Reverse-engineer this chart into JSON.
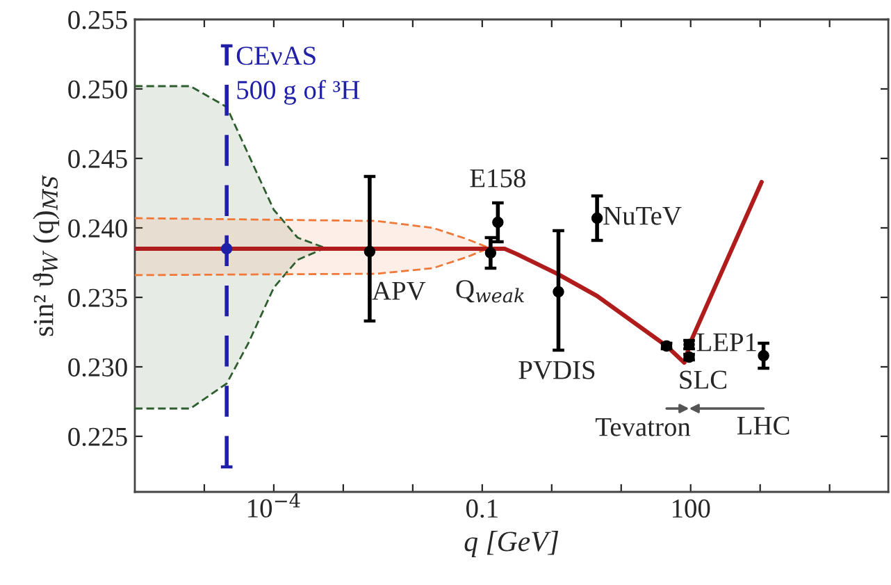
{
  "chart_data": {
    "type": "scatter",
    "xlabel": "q [GeV]",
    "ylabel": "sin² ϑ$_{W}$ (q)$_{M̅S̅}$",
    "log": "x",
    "xlim": [
      1e-06,
      70000
    ],
    "ylim": [
      0.221,
      0.255
    ],
    "xticks": [
      {
        "value": 1e-05,
        "label": null
      },
      {
        "value": 0.0001,
        "label": "10$^{−4}$"
      },
      {
        "value": 0.001,
        "label": null
      },
      {
        "value": 0.01,
        "label": null
      },
      0.1,
      {
        "value": 1,
        "label": null
      },
      {
        "value": 10,
        "label": null
      },
      100,
      {
        "value": 1000,
        "label": null
      },
      {
        "value": 10000,
        "label": null
      }
    ],
    "yticks": [
      0.225,
      {
        "value": 0.23,
        "label": "0.230"
      },
      0.235,
      {
        "value": 0.24,
        "label": "0.240"
      },
      0.245,
      {
        "value": 0.25,
        "label": "0.250"
      },
      0.255
    ],
    "grid": false,
    "legend": false,
    "marker": "circle",
    "series": [
      {
        "type": "line",
        "color": "#2e5e2e",
        "line_style": "dashed",
        "marker": "none",
        "x": [
          1e-06,
          6.3e-06,
          2.1e-05,
          4.3e-05,
          0.0001,
          0.00022,
          0.00052
        ],
        "values": [
          0.227,
          0.227,
          0.2288,
          0.2317,
          0.2357,
          0.2377,
          0.2385
        ]
      },
      {
        "type": "line",
        "color": "#2e5e2e",
        "line_style": "dashed",
        "marker": "none",
        "x": [
          1e-06,
          6.3e-06,
          2.1e-05,
          4.3e-05,
          0.0001,
          0.00022,
          0.00052
        ],
        "values": [
          0.2502,
          0.2502,
          0.2487,
          0.2453,
          0.2413,
          0.2393,
          0.2386
        ],
        "lower": [
          0.227,
          0.227,
          0.2288,
          0.2317,
          0.2357,
          0.2377,
          0.2385
        ],
        "upper": [
          0.2502,
          0.2502,
          0.2487,
          0.2453,
          0.2413,
          0.2393,
          0.2386
        ]
      },
      {
        "type": "line",
        "color": "#f07838",
        "line_style": "dashed",
        "marker": "none",
        "x": [
          1e-06,
          0.003,
          0.0195,
          0.06,
          0.12
        ],
        "values": [
          0.2366,
          0.2367,
          0.2371,
          0.2379,
          0.2385
        ]
      },
      {
        "type": "line",
        "color": "#f07838",
        "line_style": "dashed",
        "marker": "none",
        "x": [
          1e-06,
          0.003,
          0.0195,
          0.06,
          0.12
        ],
        "values": [
          0.2407,
          0.2405,
          0.24,
          0.2392,
          0.2386
        ],
        "lower": [
          0.2366,
          0.2367,
          0.2371,
          0.2379,
          0.2385
        ],
        "upper": [
          0.2407,
          0.2405,
          0.24,
          0.2392,
          0.2386
        ]
      },
      {
        "type": "line",
        "color": "#b01c1c",
        "line_style": "solid",
        "marker": "none",
        "x": [
          1e-06,
          0.21,
          0.32,
          1.2,
          4.5,
          45,
          81,
          100,
          1050
        ],
        "values": [
          0.2385,
          0.2385,
          0.2381,
          0.2367,
          0.2351,
          0.2315,
          0.2303,
          0.2318,
          0.2433
        ]
      },
      {
        "name": "CEνAS\n500 g of ³H",
        "color": "#1f1fa8",
        "line_style": "dashed",
        "x": [
          2.1e-05
        ],
        "values": [
          0.2385
        ],
        "errors": [
          [
            0.2228,
            0.2531
          ]
        ]
      },
      {
        "color": "#000000",
        "line_style": "solid",
        "x": [
          0.0024,
          0.132,
          0.168,
          1.25,
          4.5,
          45,
          95,
          95,
          1120
        ],
        "values": [
          0.2383,
          0.2382,
          0.2404,
          0.2354,
          0.2407,
          0.2315,
          0.2316,
          0.2307,
          0.2308
        ],
        "errors": [
          [
            0.2333,
            0.2437
          ],
          [
            0.2371,
            0.2393
          ],
          [
            0.239,
            0.2418
          ],
          [
            0.2312,
            0.2398
          ],
          [
            0.2391,
            0.2423
          ],
          [
            0.2313,
            0.2317
          ],
          [
            0.2313,
            0.2319
          ],
          [
            0.2305,
            0.2309
          ],
          [
            0.2299,
            0.2317
          ]
        ]
      }
    ],
    "annotations": [
      {
        "text": "APV",
        "x": 0.0024,
        "y": 0.2383
      },
      {
        "text": "Q$_{weak}$",
        "x": 0.132,
        "y": 0.2382
      },
      {
        "text": "E158",
        "x": 0.168,
        "y": 0.2404
      },
      {
        "text": "PVDIS",
        "x": 1.25,
        "y": 0.2354
      },
      {
        "text": "NuTeV",
        "x": 4.5,
        "y": 0.2407
      },
      {
        "text": "Tevatron",
        "x": 45,
        "y": 0.2315
      },
      {
        "text": "LEP1",
        "x": 95,
        "y": 0.2316
      },
      {
        "text": "SLC",
        "x": 95,
        "y": 0.2307
      },
      {
        "text": "LHC",
        "x": 1120,
        "y": 0.2308
      }
    ]
  }
}
